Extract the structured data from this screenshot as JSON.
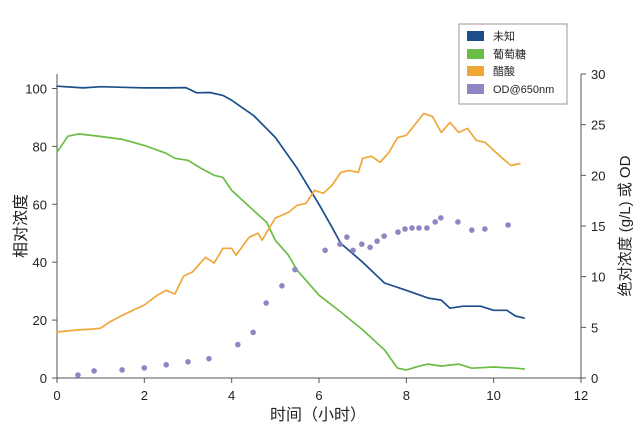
{
  "chart_data": {
    "type": "line",
    "xlabel": "时间（小时）",
    "ylabel": "相对浓度",
    "y2label": "绝对浓度 (g/L) 或 OD",
    "xlim": [
      0,
      12
    ],
    "ylim": [
      0,
      105
    ],
    "y2lim": [
      0,
      30
    ],
    "xticks": [
      0,
      2,
      4,
      6,
      8,
      10,
      12
    ],
    "yticks": [
      0,
      20,
      40,
      60,
      80,
      100
    ],
    "y2ticks": [
      0,
      5,
      10,
      15,
      20,
      25,
      30
    ],
    "grid": false,
    "legend_position": "top-right",
    "series": [
      {
        "name": "未知",
        "type": "line",
        "axis": "left",
        "color": "#1d4e89",
        "x": [
          0,
          0.6,
          1,
          1.5,
          2,
          2.5,
          2.95,
          3.2,
          3.5,
          3.8,
          4,
          4.5,
          5,
          5.5,
          6,
          6.3,
          6.5,
          7,
          7.5,
          8,
          8.5,
          8.8,
          9,
          9.3,
          9.7,
          10,
          10.3,
          10.5,
          10.7
        ],
        "y": [
          100.8,
          100.2,
          100.6,
          100.4,
          100.2,
          100.2,
          100.3,
          98.5,
          98.6,
          97.6,
          95.9,
          90.7,
          83.1,
          72.4,
          60.0,
          52.0,
          46.5,
          40.0,
          32.8,
          30.3,
          27.6,
          26.9,
          24.1,
          24.8,
          24.8,
          23.4,
          23.4,
          21.4,
          20.7
        ]
      },
      {
        "name": "葡萄糖",
        "type": "line",
        "axis": "left",
        "color": "#6bbd45",
        "x": [
          0,
          0.25,
          0.5,
          1,
          1.5,
          2,
          2.5,
          2.7,
          3,
          3.3,
          3.6,
          3.8,
          4,
          4.5,
          4.8,
          5,
          5.3,
          5.5,
          6,
          6.5,
          7,
          7.5,
          7.8,
          8,
          8.3,
          8.5,
          8.8,
          9,
          9.2,
          9.5,
          10,
          10.5,
          10.7
        ],
        "y": [
          78,
          83.5,
          84.3,
          83.4,
          82.4,
          80.3,
          77.6,
          75.9,
          75.2,
          72.4,
          70,
          69.3,
          64.8,
          57.9,
          53.8,
          47.6,
          42.4,
          37.2,
          28.6,
          22.8,
          16.6,
          9.7,
          3.4,
          2.8,
          4.1,
          4.8,
          4.1,
          4.5,
          4.8,
          3.4,
          3.8,
          3.4,
          3.1
        ]
      },
      {
        "name": "醋酸",
        "type": "line",
        "axis": "left",
        "color": "#f0a73a",
        "x": [
          0,
          0.5,
          0.8,
          1,
          1.2,
          1.5,
          2,
          2.3,
          2.5,
          2.7,
          2.9,
          3.1,
          3.4,
          3.6,
          3.8,
          4,
          4.1,
          4.4,
          4.6,
          4.7,
          4.8,
          5,
          5.3,
          5.5,
          5.7,
          5.9,
          6.1,
          6.3,
          6.5,
          6.7,
          6.9,
          7,
          7.2,
          7.4,
          7.6,
          7.8,
          8,
          8.2,
          8.4,
          8.6,
          8.8,
          9,
          9.2,
          9.4,
          9.6,
          9.8,
          10,
          10.2,
          10.4,
          10.6
        ],
        "y": [
          15.9,
          16.6,
          16.9,
          17.2,
          19.3,
          21.7,
          25.2,
          28.6,
          30.3,
          29.0,
          35.2,
          36.6,
          41.7,
          39.7,
          44.8,
          44.8,
          42.4,
          48.6,
          50.0,
          47.6,
          50.3,
          55.2,
          57.2,
          59.7,
          60.3,
          64.8,
          63.8,
          66.6,
          71.0,
          71.7,
          71.0,
          75.9,
          76.6,
          74.5,
          77.9,
          83.1,
          83.8,
          87.6,
          91.4,
          90.3,
          84.8,
          88.3,
          84.8,
          86.2,
          82.1,
          81.4,
          78.6,
          75.9,
          73.4,
          74.1
        ]
      },
      {
        "name": "OD@650nm",
        "type": "scatter",
        "axis": "right",
        "color": "#8f86c4",
        "x": [
          0.48,
          0.85,
          1.49,
          2.0,
          2.5,
          3.0,
          3.48,
          4.14,
          4.49,
          4.79,
          5.15,
          5.45,
          6.14,
          6.48,
          6.64,
          6.78,
          6.98,
          7.17,
          7.33,
          7.49,
          7.81,
          7.97,
          8.13,
          8.29,
          8.47,
          8.66,
          8.79,
          9.18,
          9.5,
          9.8,
          10.33
        ],
        "y": [
          0.3,
          0.7,
          0.8,
          1.0,
          1.3,
          1.6,
          1.9,
          3.3,
          4.5,
          7.4,
          9.1,
          10.7,
          12.6,
          13.2,
          13.9,
          12.6,
          13.2,
          12.9,
          13.5,
          14.0,
          14.4,
          14.7,
          14.8,
          14.8,
          14.8,
          15.4,
          15.8,
          15.4,
          14.6,
          14.7,
          15.1
        ]
      }
    ]
  }
}
